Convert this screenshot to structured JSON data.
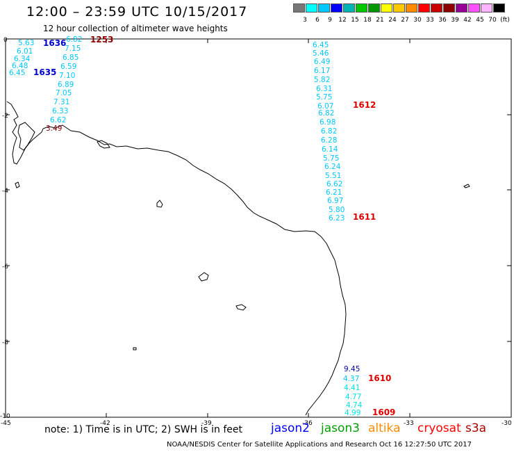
{
  "title": "12:00 – 23:59 UTC 10/15/2017",
  "subtitle": "12 hour collection of altimeter wave heights",
  "scale": {
    "labels": [
      "3",
      "6",
      "9",
      "12",
      "15",
      "18",
      "21",
      "24",
      "27",
      "30",
      "33",
      "36",
      "39",
      "42",
      "45",
      "70",
      "(ft)"
    ],
    "colors": [
      "#777777",
      "#00ffff",
      "#00c8ff",
      "#0000ff",
      "#00b4b4",
      "#00c800",
      "#009600",
      "#ffff00",
      "#ffc800",
      "#ff8c00",
      "#ff0000",
      "#c80000",
      "#8c0000",
      "#960096",
      "#ff50ff",
      "#ffb4ff",
      "#000000"
    ]
  },
  "axes": {
    "y_labels": [
      "0",
      "-2",
      "-4",
      "-6",
      "-8",
      "-10"
    ],
    "x_labels": [
      "-45",
      "-42",
      "-39",
      "-36",
      "-33",
      "-30"
    ]
  },
  "tracks": [
    {
      "id": "1636",
      "color": "#0000cc",
      "label_color": "#0000cc",
      "values": [
        {
          "v": "5.63",
          "c": "#00c8ff"
        },
        {
          "v": "6.01",
          "c": "#00c8ff"
        },
        {
          "v": "6.34",
          "c": "#00c8ff"
        },
        {
          "v": "6.48",
          "c": "#00c8ff"
        },
        {
          "v": "6.45",
          "c": "#00c8ff"
        }
      ]
    },
    {
      "id": "1635",
      "color": "#0000cc",
      "label_color": "#0000cc",
      "values": [
        {
          "v": "6.82",
          "c": "#00c8ff"
        },
        {
          "v": "7.15",
          "c": "#00c8ff"
        },
        {
          "v": "6.85",
          "c": "#00c8ff"
        },
        {
          "v": "6.59",
          "c": "#00c8ff"
        },
        {
          "v": "7.10",
          "c": "#00c8ff"
        },
        {
          "v": "6.89",
          "c": "#00c8ff"
        },
        {
          "v": "7.05",
          "c": "#00c8ff"
        },
        {
          "v": "7.31",
          "c": "#00c8ff"
        },
        {
          "v": "6.33",
          "c": "#00c8ff"
        },
        {
          "v": "6.62",
          "c": "#00c8ff"
        },
        {
          "v": "3.49",
          "c": "#8c0000"
        }
      ]
    },
    {
      "id": "1253",
      "color": "#8c0000",
      "label_color": "#8c0000",
      "values": []
    },
    {
      "id": "1612",
      "color": "#cc0000",
      "label_color": "#dd0000",
      "values": [
        {
          "v": "6.45",
          "c": "#00c8ff"
        },
        {
          "v": "5.46",
          "c": "#00c8ff"
        },
        {
          "v": "6.49",
          "c": "#00c8ff"
        },
        {
          "v": "6.17",
          "c": "#00c8ff"
        },
        {
          "v": "5.82",
          "c": "#00c8ff"
        },
        {
          "v": "6.31",
          "c": "#00c8ff"
        },
        {
          "v": "5.75",
          "c": "#00c8ff"
        },
        {
          "v": "6.07",
          "c": "#00c8ff"
        }
      ]
    },
    {
      "id": "1611",
      "color": "#cc0000",
      "label_color": "#dd0000",
      "values": [
        {
          "v": "6.82",
          "c": "#00c8ff"
        },
        {
          "v": "6.98",
          "c": "#00c8ff"
        },
        {
          "v": "6.82",
          "c": "#00c8ff"
        },
        {
          "v": "6.28",
          "c": "#00c8ff"
        },
        {
          "v": "6.14",
          "c": "#00c8ff"
        },
        {
          "v": "5.75",
          "c": "#00c8ff"
        },
        {
          "v": "6.24",
          "c": "#00c8ff"
        },
        {
          "v": "5.51",
          "c": "#00c8ff"
        },
        {
          "v": "6.62",
          "c": "#00c8ff"
        },
        {
          "v": "6.21",
          "c": "#00c8ff"
        },
        {
          "v": "6.97",
          "c": "#00c8ff"
        },
        {
          "v": "5.80",
          "c": "#00c8ff"
        },
        {
          "v": "6.23",
          "c": "#00c8ff"
        }
      ]
    },
    {
      "id": "1610",
      "color": "#cc0000",
      "label_color": "#dd0000",
      "values": [
        {
          "v": "9.45",
          "c": "#0000aa"
        },
        {
          "v": "4.37",
          "c": "#00c8ff"
        }
      ]
    },
    {
      "id": "1609",
      "color": "#cc0000",
      "label_color": "#dd0000",
      "values": [
        {
          "v": "4.41",
          "c": "#00e6e6"
        },
        {
          "v": "4.77",
          "c": "#00e6e6"
        },
        {
          "v": "4.74",
          "c": "#00e6e6"
        },
        {
          "v": "4.99",
          "c": "#00e6e6"
        }
      ]
    }
  ],
  "note": "note: 1) Time is in UTC; 2) SWH is in feet",
  "satellites": [
    {
      "name": "jason2",
      "color": "#0000ff"
    },
    {
      "name": "jason3",
      "color": "#00a000"
    },
    {
      "name": "altika",
      "color": "#ff8c00"
    },
    {
      "name": "cryosat",
      "color": "#ff0000"
    },
    {
      "name": "s3a",
      "color": "#aa0000"
    }
  ],
  "footer": "NOAA/NESDIS Center for Satellite Applications and Research    Oct 16 12:27:50 UTC 2017"
}
